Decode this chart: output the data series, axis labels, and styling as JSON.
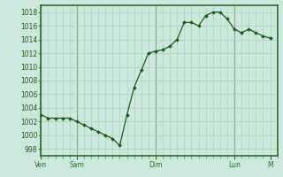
{
  "bg_color": "#cce8dc",
  "grid_major_color": "#aacfbe",
  "grid_minor_color": "#bbdacc",
  "line_color": "#1a5c1a",
  "marker_color": "#1a5c1a",
  "tick_label_color": "#1a5c1a",
  "spine_color": "#2a6e2a",
  "ylim": [
    997,
    1019
  ],
  "yticks": [
    998,
    1000,
    1002,
    1004,
    1006,
    1008,
    1010,
    1012,
    1014,
    1016,
    1018
  ],
  "day_labels": [
    "Ven",
    "Sam",
    "Dim",
    "Lun",
    "M"
  ],
  "day_x": [
    0,
    30,
    96,
    162,
    192
  ],
  "xlim": [
    0,
    198
  ],
  "x_values": [
    0,
    6,
    12,
    18,
    24,
    30,
    36,
    42,
    48,
    54,
    60,
    66,
    72,
    78,
    84,
    90,
    96,
    102,
    108,
    114,
    120,
    126,
    132,
    138,
    144,
    150,
    156,
    162,
    168,
    174,
    180,
    186,
    192
  ],
  "y_values": [
    1003.0,
    1002.5,
    1002.5,
    1002.5,
    1002.5,
    1002.0,
    1001.5,
    1001.0,
    1000.5,
    1000.0,
    999.5,
    998.5,
    1003.0,
    1007.0,
    1009.5,
    1012.0,
    1012.3,
    1012.5,
    1013.0,
    1014.0,
    1016.5,
    1016.5,
    1016.0,
    1017.5,
    1018.0,
    1018.0,
    1017.0,
    1015.5,
    1015.0,
    1015.5,
    1015.0,
    1014.5,
    1014.2
  ]
}
